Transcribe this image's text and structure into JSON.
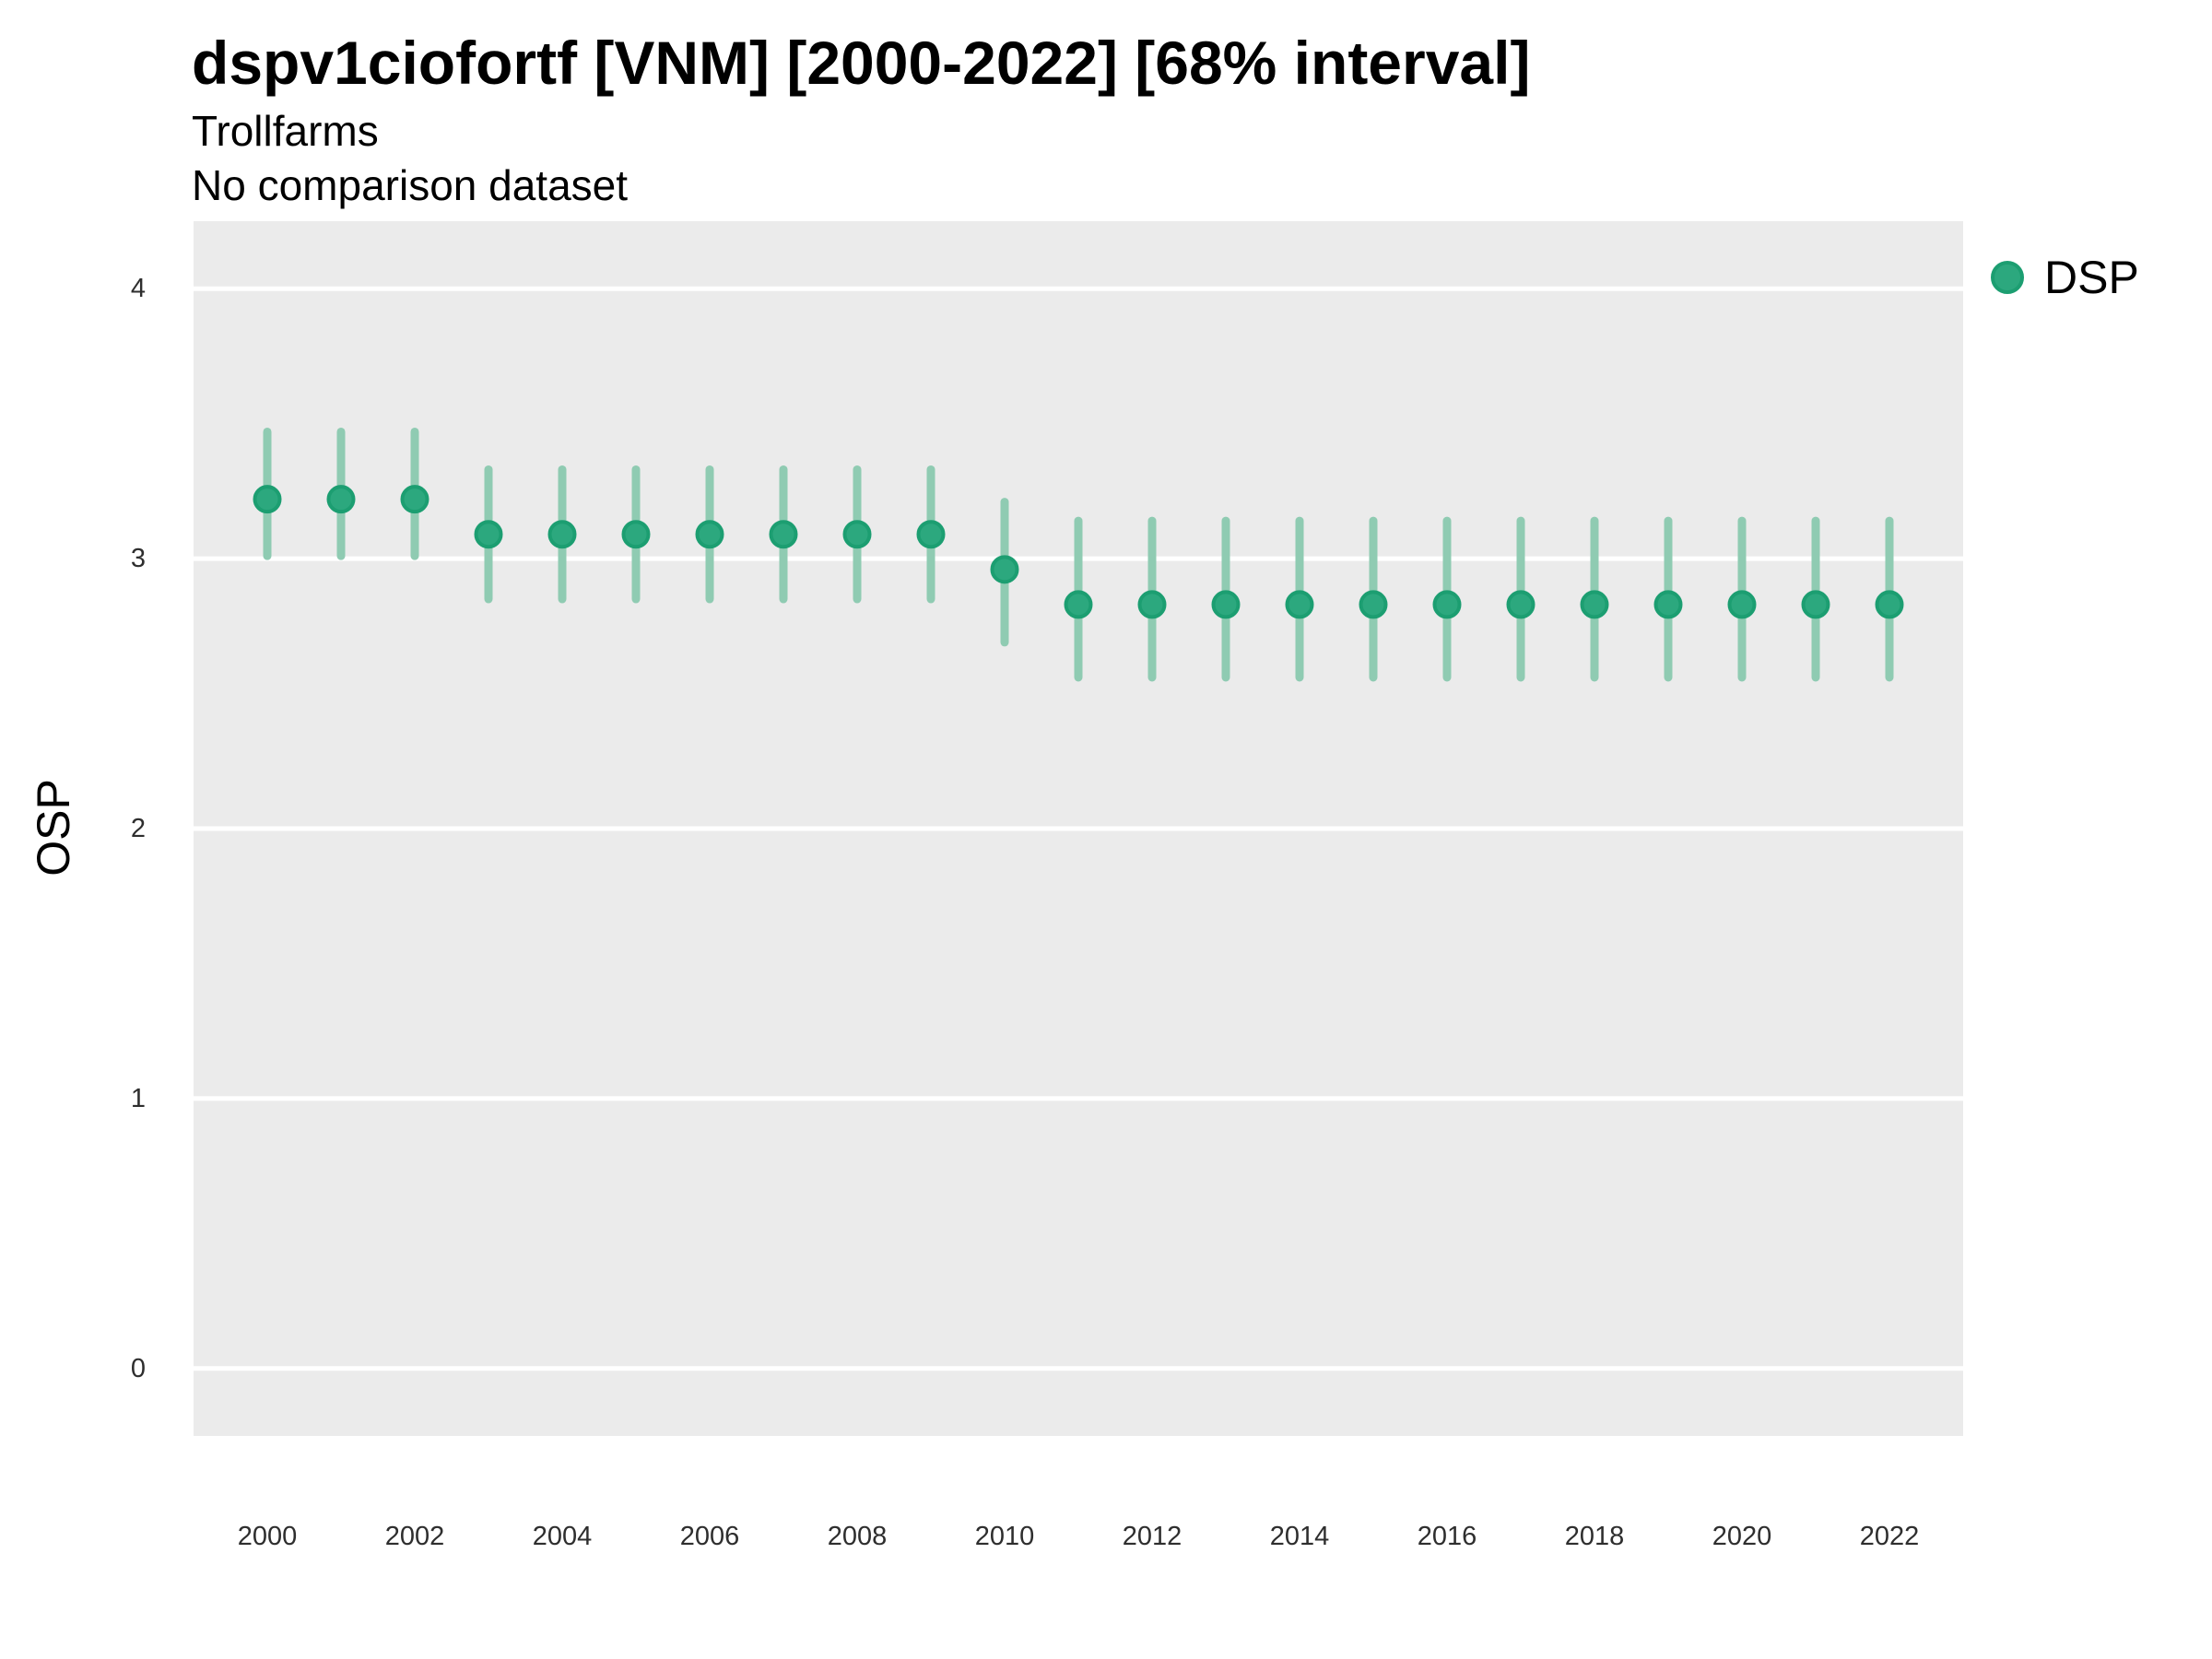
{
  "chart_data": {
    "type": "scatter",
    "mark": "pointrange",
    "title": "dspv1ciofortf [VNM] [2000-2022] [68% interval]",
    "subtitle": "Trollfarms",
    "note": "No comparison dataset",
    "xlabel": "",
    "ylabel": "OSP",
    "interval_label": "68% interval",
    "x": [
      2000,
      2001,
      2002,
      2003,
      2004,
      2005,
      2006,
      2007,
      2008,
      2009,
      2010,
      2011,
      2012,
      2013,
      2014,
      2015,
      2016,
      2017,
      2018,
      2019,
      2020,
      2021,
      2022
    ],
    "series": [
      {
        "name": "DSP",
        "values": [
          3.22,
          3.22,
          3.22,
          3.09,
          3.09,
          3.09,
          3.09,
          3.09,
          3.09,
          3.09,
          2.96,
          2.83,
          2.83,
          2.83,
          2.83,
          2.83,
          2.83,
          2.83,
          2.83,
          2.83,
          2.83,
          2.83,
          2.83
        ],
        "lower": [
          3.01,
          3.01,
          3.01,
          2.85,
          2.85,
          2.85,
          2.85,
          2.85,
          2.85,
          2.85,
          2.69,
          2.56,
          2.56,
          2.56,
          2.56,
          2.56,
          2.56,
          2.56,
          2.56,
          2.56,
          2.56,
          2.56,
          2.56
        ],
        "upper": [
          3.47,
          3.47,
          3.47,
          3.33,
          3.33,
          3.33,
          3.33,
          3.33,
          3.33,
          3.33,
          3.21,
          3.14,
          3.14,
          3.14,
          3.14,
          3.14,
          3.14,
          3.14,
          3.14,
          3.14,
          3.14,
          3.14,
          3.14
        ]
      }
    ],
    "xticks": [
      2000,
      2002,
      2004,
      2006,
      2008,
      2010,
      2012,
      2014,
      2016,
      2018,
      2020,
      2022
    ],
    "yticks": [
      0,
      1,
      2,
      3,
      4
    ],
    "xlim": [
      1999,
      2023
    ],
    "ylim": [
      -0.25,
      4.25
    ],
    "grid": {
      "horizontal": true,
      "vertical": false,
      "color": "#ffffff"
    },
    "legend": {
      "position": "right",
      "entries": [
        {
          "label": "DSP"
        }
      ]
    },
    "colors": {
      "point_fill": "#2ca87e",
      "point_stroke": "#1c9e71",
      "interval": "#8fcbb2",
      "panel_bg": "#ebebeb",
      "grid": "#ffffff",
      "tick_text": "#2e2e2e",
      "text": "#000000"
    }
  }
}
